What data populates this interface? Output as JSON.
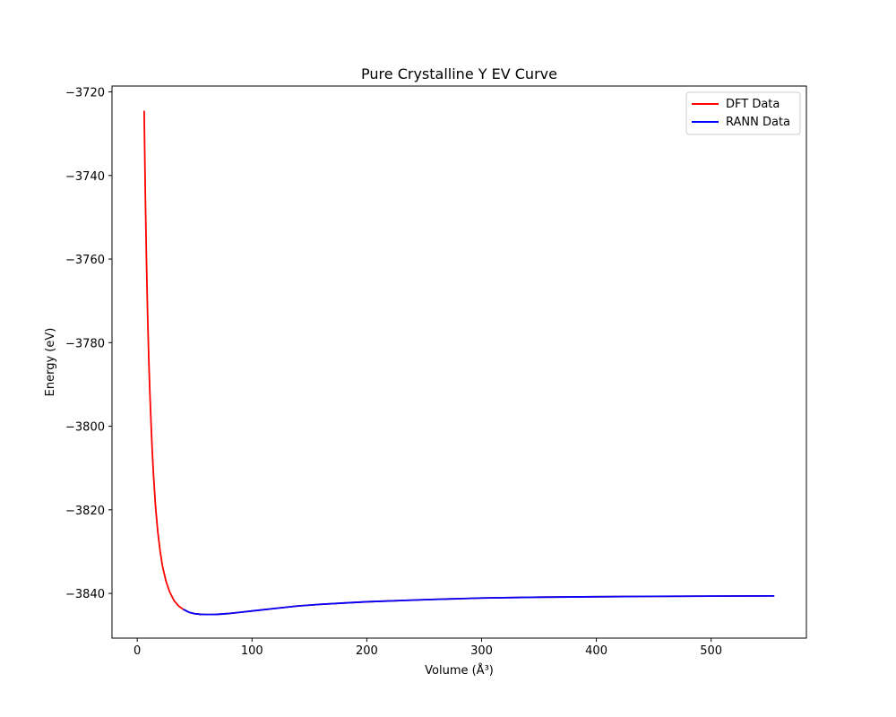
{
  "chart_data": {
    "type": "line",
    "title": "Pure Crystalline Y EV Curve",
    "xlabel": "Volume (Å³)",
    "ylabel": "Energy (eV)",
    "xlim": [
      -22,
      583
    ],
    "ylim": [
      -3850.7,
      -3718.6
    ],
    "xticks": [
      0,
      100,
      200,
      300,
      400,
      500
    ],
    "yticks": [
      -3840,
      -3820,
      -3800,
      -3780,
      -3760,
      -3740,
      -3720
    ],
    "xtick_labels": [
      "0",
      "100",
      "200",
      "300",
      "400",
      "500"
    ],
    "ytick_labels": [
      "−3840",
      "−3820",
      "−3800",
      "−3780",
      "−3760",
      "−3740",
      "−3720"
    ],
    "grid": false,
    "legend_position": "top-right",
    "series": [
      {
        "name": "DFT Data",
        "color": "#ff0000",
        "x": [
          6,
          7,
          8,
          9,
          10,
          11,
          12,
          13,
          14,
          16,
          18,
          20,
          22,
          25,
          28,
          32,
          36,
          40,
          45,
          50,
          55,
          60,
          65,
          70,
          80,
          90,
          100,
          120,
          140,
          160,
          180,
          200,
          250,
          300,
          350,
          400,
          450,
          500,
          555
        ],
        "y": [
          -3724.5,
          -3744.0,
          -3760.0,
          -3773.0,
          -3783.5,
          -3792.0,
          -3799.0,
          -3805.5,
          -3811.0,
          -3819.5,
          -3825.5,
          -3830.0,
          -3833.5,
          -3837.0,
          -3839.5,
          -3841.7,
          -3843.0,
          -3843.8,
          -3844.5,
          -3844.85,
          -3845.0,
          -3845.05,
          -3845.05,
          -3845.0,
          -3844.8,
          -3844.5,
          -3844.2,
          -3843.6,
          -3843.0,
          -3842.6,
          -3842.3,
          -3842.0,
          -3841.5,
          -3841.1,
          -3840.9,
          -3840.8,
          -3840.7,
          -3840.65,
          -3840.6
        ]
      },
      {
        "name": "RANN Data",
        "color": "#0000ff",
        "x": [
          40,
          45,
          50,
          55,
          60,
          65,
          70,
          80,
          90,
          100,
          120,
          140,
          160,
          180,
          200,
          250,
          300,
          350,
          400,
          450,
          500,
          555
        ],
        "y": [
          -3843.8,
          -3844.5,
          -3844.85,
          -3845.0,
          -3845.05,
          -3845.05,
          -3845.0,
          -3844.8,
          -3844.5,
          -3844.2,
          -3843.6,
          -3843.0,
          -3842.6,
          -3842.3,
          -3842.0,
          -3841.5,
          -3841.1,
          -3840.9,
          -3840.8,
          -3840.7,
          -3840.65,
          -3840.6
        ]
      }
    ]
  }
}
